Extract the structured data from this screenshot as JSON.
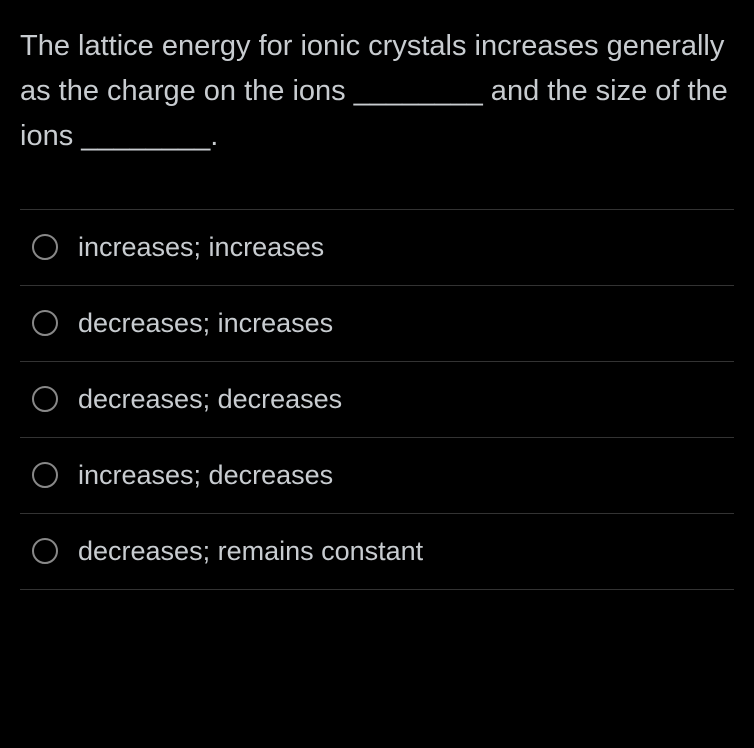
{
  "question": {
    "text": "The lattice energy for ionic crystals increases generally as the charge on the ions ________ and the size of the ions ________."
  },
  "options": [
    {
      "label": "increases; increases"
    },
    {
      "label": "decreases; increases"
    },
    {
      "label": "decreases; decreases"
    },
    {
      "label": "increases; decreases"
    },
    {
      "label": "decreases; remains constant"
    }
  ],
  "colors": {
    "background": "#000000",
    "text": "#c8ccd0",
    "divider": "#333333",
    "radio_border": "#888888"
  },
  "typography": {
    "question_fontsize": 29,
    "option_fontsize": 27,
    "line_height": 1.55
  }
}
